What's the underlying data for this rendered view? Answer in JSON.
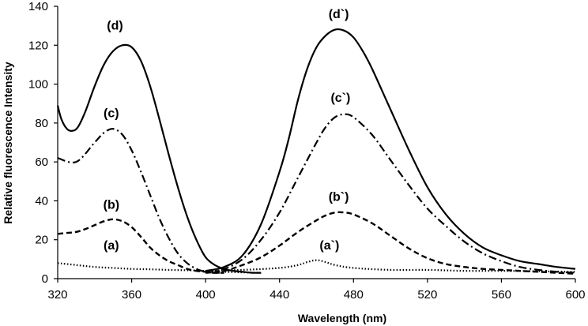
{
  "chart_data": {
    "type": "line",
    "title": "",
    "xlabel": "Wavelength  (nm)",
    "ylabel": "Relative fluorescence Intensity",
    "xlim": [
      320,
      600
    ],
    "ylim": [
      0,
      140
    ],
    "xticks": [
      320,
      360,
      400,
      440,
      480,
      520,
      560,
      600
    ],
    "yticks": [
      0,
      20,
      40,
      60,
      80,
      100,
      120,
      140
    ],
    "grid": false,
    "legend": "none",
    "series": [
      {
        "name": "(a)",
        "group": "excitation",
        "style": "dotted",
        "x": [
          320,
          330,
          340,
          350,
          360,
          370,
          380,
          390,
          400,
          410,
          420,
          430
        ],
        "y": [
          8,
          7,
          6,
          5.5,
          5,
          4.8,
          4.5,
          4.3,
          4,
          3.5,
          3.2,
          3
        ]
      },
      {
        "name": "(b)",
        "group": "excitation",
        "style": "dashed",
        "x": [
          320,
          325,
          330,
          335,
          340,
          345,
          350,
          355,
          360,
          365,
          370,
          375,
          380,
          385,
          390,
          395,
          400,
          405,
          410
        ],
        "y": [
          23,
          23.5,
          24,
          25.5,
          27.5,
          29.5,
          30.5,
          29.5,
          26.5,
          21.5,
          16,
          12,
          9,
          7,
          5,
          4,
          3.5,
          3,
          3
        ]
      },
      {
        "name": "(c)",
        "group": "excitation",
        "style": "dashdot",
        "x": [
          320,
          330,
          340,
          345,
          350,
          355,
          360,
          365,
          370,
          375,
          380,
          385,
          390,
          395,
          400,
          405,
          410
        ],
        "y": [
          62,
          60,
          70,
          75,
          77,
          74,
          66,
          55,
          43,
          31,
          21,
          13,
          8,
          5,
          3.5,
          3,
          3
        ]
      },
      {
        "name": "(d)",
        "group": "excitation",
        "style": "solid",
        "x": [
          320,
          322,
          325,
          328,
          331,
          335,
          340,
          345,
          350,
          355,
          360,
          365,
          370,
          375,
          380,
          385,
          390,
          395,
          400,
          405,
          410,
          415,
          420,
          425,
          430
        ],
        "y": [
          89,
          82,
          77,
          76,
          78,
          86,
          99,
          110,
          117,
          120,
          119,
          112,
          99,
          82,
          64,
          47,
          32,
          20,
          11,
          7,
          5,
          4,
          3.5,
          3,
          3
        ]
      },
      {
        "name": "(a`)",
        "group": "emission",
        "style": "dotted",
        "x": [
          400,
          420,
          440,
          450,
          455,
          460,
          465,
          470,
          480,
          500,
          520,
          540,
          560,
          580,
          600
        ],
        "y": [
          4,
          4.5,
          5.5,
          7,
          8.5,
          9.5,
          8.5,
          7,
          5.5,
          4.5,
          4.5,
          4,
          4,
          3.8,
          3.5
        ]
      },
      {
        "name": "(b`)",
        "group": "emission",
        "style": "dashed",
        "x": [
          400,
          410,
          420,
          430,
          440,
          450,
          460,
          465,
          470,
          475,
          480,
          490,
          500,
          510,
          520,
          530,
          540,
          550,
          560,
          570,
          580,
          590,
          600
        ],
        "y": [
          3,
          4,
          7,
          11,
          17,
          24,
          30,
          32.5,
          34,
          34,
          33,
          28.5,
          22,
          15.5,
          10.5,
          7.5,
          6,
          5,
          4.5,
          4,
          3.5,
          3,
          2.5
        ]
      },
      {
        "name": "(c`)",
        "group": "emission",
        "style": "dashdot",
        "x": [
          400,
          410,
          420,
          430,
          440,
          450,
          460,
          465,
          470,
          475,
          480,
          490,
          500,
          510,
          520,
          530,
          540,
          550,
          560,
          570,
          580,
          590,
          600
        ],
        "y": [
          3,
          5,
          10,
          20,
          34,
          52,
          70,
          78,
          83,
          84.5,
          83,
          74,
          61,
          48,
          36,
          27,
          19,
          13,
          9,
          6,
          4.5,
          3.5,
          3
        ]
      },
      {
        "name": "(d`)",
        "group": "emission",
        "style": "solid",
        "x": [
          400,
          410,
          420,
          430,
          440,
          445,
          450,
          455,
          460,
          465,
          470,
          475,
          480,
          485,
          490,
          500,
          510,
          520,
          530,
          540,
          550,
          560,
          570,
          580,
          590,
          600
        ],
        "y": [
          4,
          6,
          12,
          28,
          55,
          72,
          92,
          108,
          119,
          125,
          128,
          127.5,
          124,
          117,
          108,
          87,
          66,
          47,
          33,
          23,
          16,
          12,
          9,
          7.5,
          6,
          5
        ]
      }
    ],
    "annotations": [
      {
        "text": "(d)",
        "x": 351,
        "y": 128
      },
      {
        "text": "(c)",
        "x": 349,
        "y": 83
      },
      {
        "text": "(b)",
        "x": 349,
        "y": 36
      },
      {
        "text": "(a)",
        "x": 349,
        "y": 15
      },
      {
        "text": "(d`)",
        "x": 472,
        "y": 134
      },
      {
        "text": "(c`)",
        "x": 473,
        "y": 91
      },
      {
        "text": "(b`)",
        "x": 472,
        "y": 40
      },
      {
        "text": "(a`)",
        "x": 467,
        "y": 15
      }
    ]
  }
}
